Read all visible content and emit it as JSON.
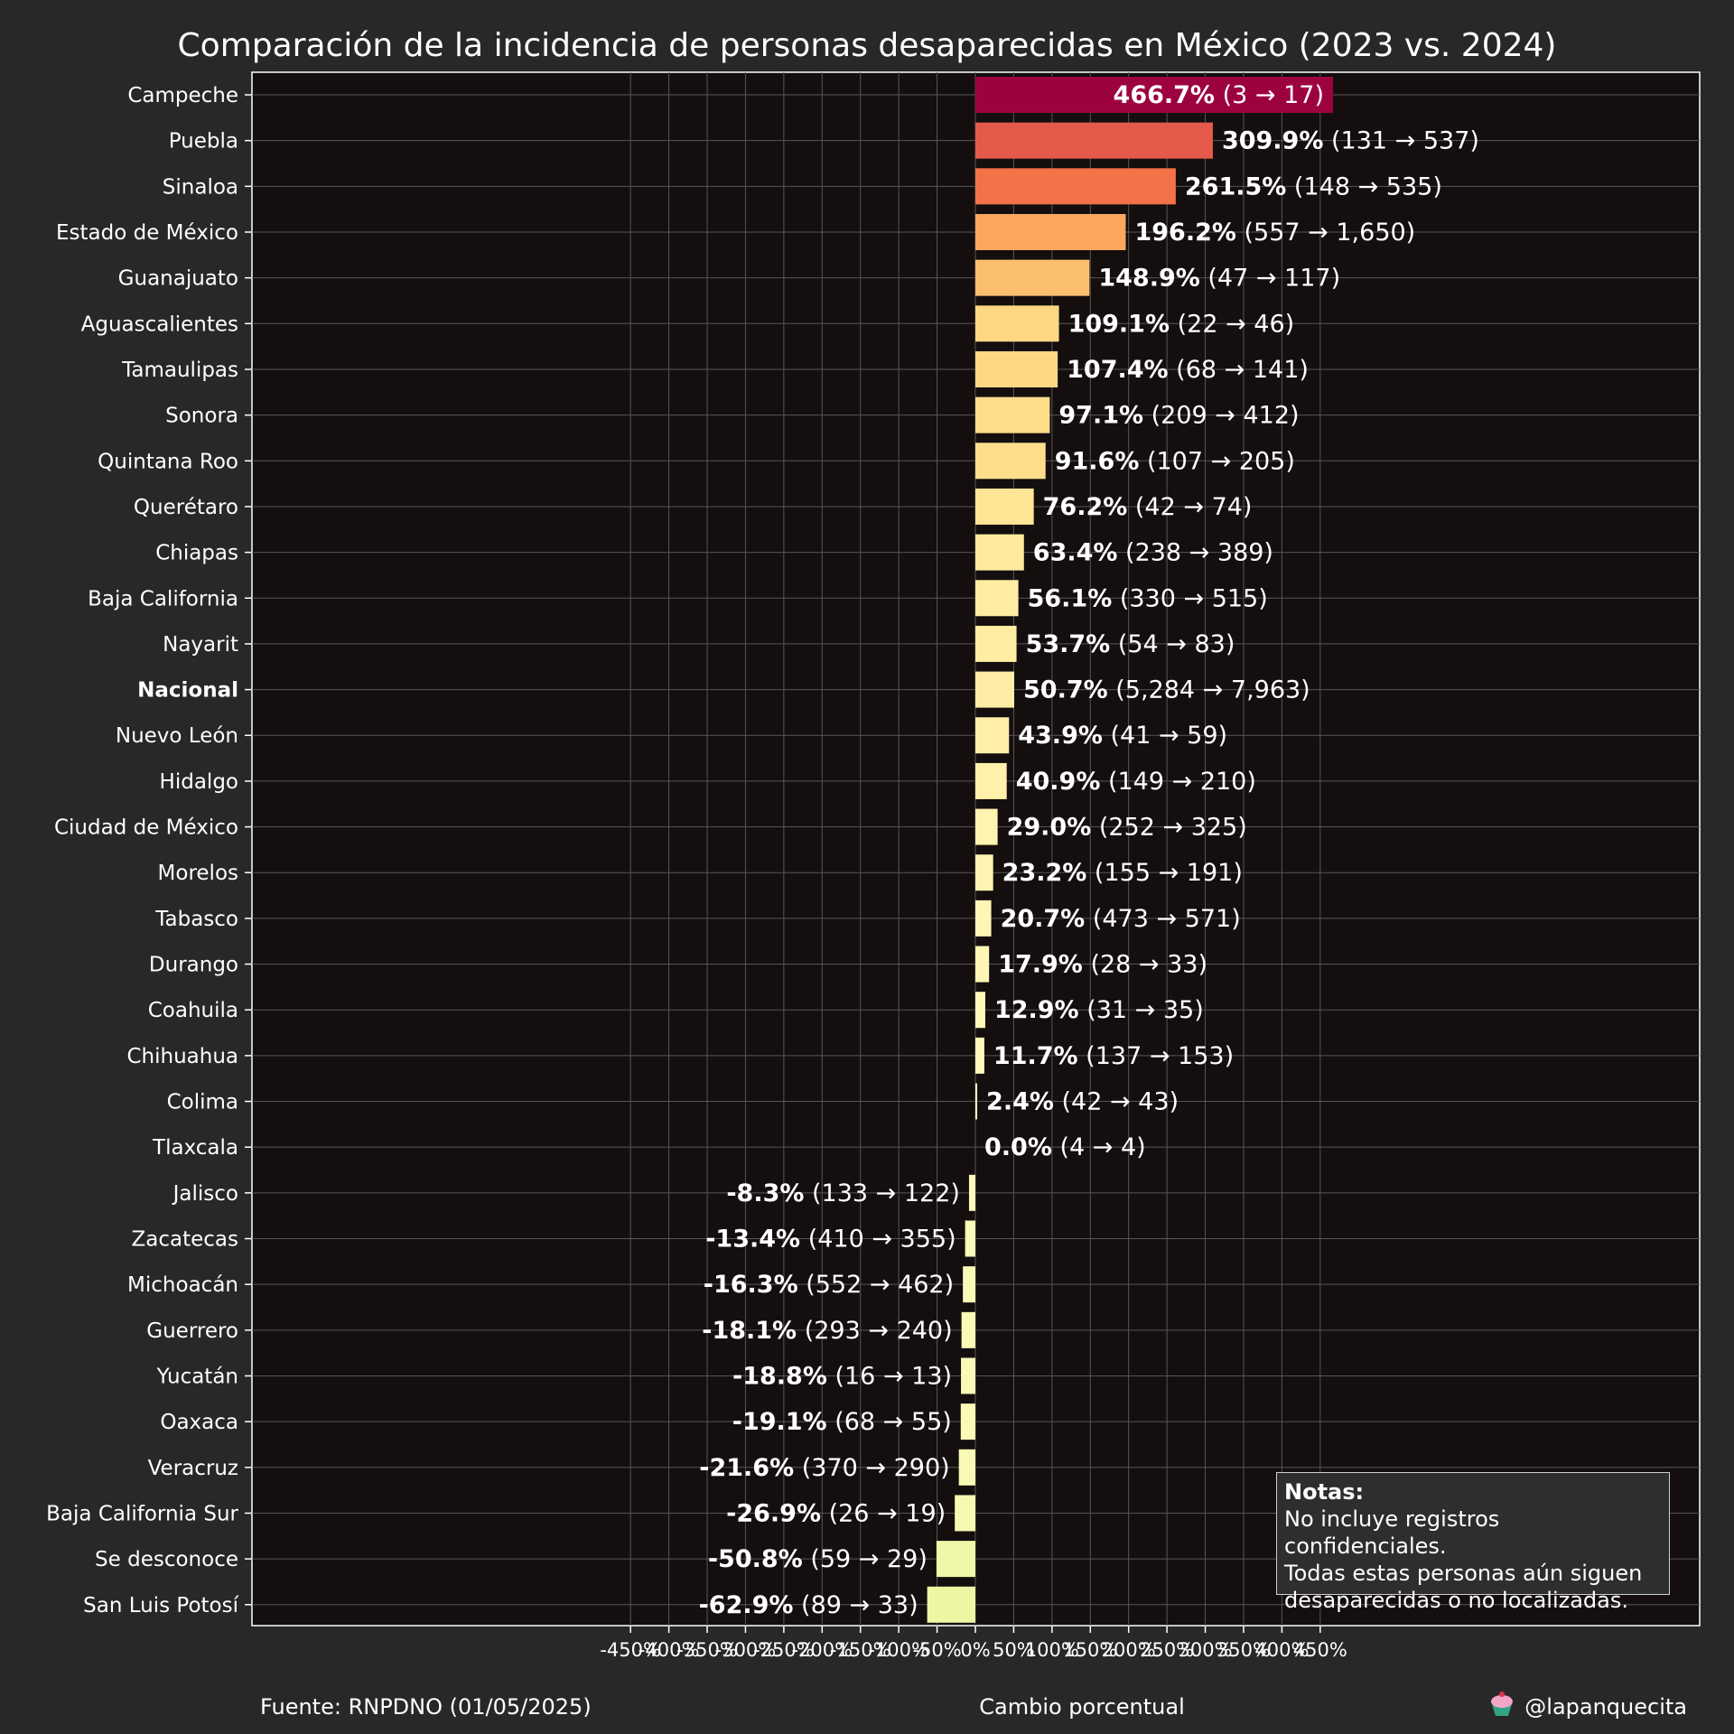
{
  "chart_data": {
    "type": "bar",
    "orientation": "horizontal",
    "title": "Comparación de la incidencia de personas desaparecidas en México (2023 vs. 2024)",
    "xlabel": "Cambio porcentual",
    "xlim": [
      -470,
      475
    ],
    "x_ticks": [
      "-450%",
      "-400%",
      "-350%",
      "-300%",
      "-250%",
      "-200%",
      "-150%",
      "-100%",
      "-50%",
      "0%",
      "50%",
      "100%",
      "150%",
      "200%",
      "250%",
      "300%",
      "350%",
      "400%",
      "450%"
    ],
    "grid": true,
    "categories": [
      "Campeche",
      "Puebla",
      "Sinaloa",
      "Estado de México",
      "Guanajuato",
      "Aguascalientes",
      "Tamaulipas",
      "Sonora",
      "Quintana Roo",
      "Querétaro",
      "Chiapas",
      "Baja California",
      "Nayarit",
      "Nacional",
      "Nuevo León",
      "Hidalgo",
      "Ciudad de México",
      "Morelos",
      "Tabasco",
      "Durango",
      "Coahuila",
      "Chihuahua",
      "Colima",
      "Tlaxcala",
      "Jalisco",
      "Zacatecas",
      "Michoacán",
      "Guerrero",
      "Yucatán",
      "Oaxaca",
      "Veracruz",
      "Baja California Sur",
      "Se desconoce",
      "San Luis Potosí"
    ],
    "highlight_category": "Nacional",
    "values": [
      466.7,
      309.9,
      261.5,
      196.2,
      148.9,
      109.1,
      107.4,
      97.1,
      91.6,
      76.2,
      63.4,
      56.1,
      53.7,
      50.7,
      43.9,
      40.9,
      29.0,
      23.2,
      20.7,
      17.9,
      12.9,
      11.7,
      2.4,
      0.0,
      -8.3,
      -13.4,
      -16.3,
      -18.1,
      -18.8,
      -19.1,
      -21.6,
      -26.9,
      -50.8,
      -62.9
    ],
    "value_labels": [
      "466.7%",
      "309.9%",
      "261.5%",
      "196.2%",
      "148.9%",
      "109.1%",
      "107.4%",
      "97.1%",
      "91.6%",
      "76.2%",
      "63.4%",
      "56.1%",
      "53.7%",
      "50.7%",
      "43.9%",
      "40.9%",
      "29.0%",
      "23.2%",
      "20.7%",
      "17.9%",
      "12.9%",
      "11.7%",
      "2.4%",
      "0.0%",
      "-8.3%",
      "-13.4%",
      "-16.3%",
      "-18.1%",
      "-18.8%",
      "-19.1%",
      "-21.6%",
      "-26.9%",
      "-50.8%",
      "-62.9%"
    ],
    "count_labels": [
      "(3 → 17)",
      "(131 → 537)",
      "(148 → 535)",
      "(557 → 1,650)",
      "(47 → 117)",
      "(22 → 46)",
      "(68 → 141)",
      "(209 → 412)",
      "(107 → 205)",
      "(42 → 74)",
      "(238 → 389)",
      "(330 → 515)",
      "(54 → 83)",
      "(5,284 → 7,963)",
      "(41 → 59)",
      "(149 → 210)",
      "(252 → 325)",
      "(155 → 191)",
      "(473 → 571)",
      "(28 → 33)",
      "(31 → 35)",
      "(137 → 153)",
      "(42 → 43)",
      "(4 → 4)",
      "(133 → 122)",
      "(410 → 355)",
      "(552 → 462)",
      "(293 → 240)",
      "(16 → 13)",
      "(68 → 55)",
      "(370 → 290)",
      "(26 → 19)",
      "(59 → 29)",
      "(89 → 33)"
    ],
    "colors": {
      "background": "#282828",
      "plot_background": "#140e0e",
      "colormap": "red-orange-yellow",
      "max_color": "#9b0040"
    }
  },
  "notes": {
    "title": "Notas:",
    "lines": [
      "No incluye registros confidenciales.",
      "Todas estas personas aún siguen",
      "desaparecidas o no localizadas."
    ]
  },
  "footer": {
    "source": "Fuente: RNPDNO (01/05/2025)",
    "handle": "@lapanquecita",
    "handle_icon": "cupcake-icon"
  }
}
